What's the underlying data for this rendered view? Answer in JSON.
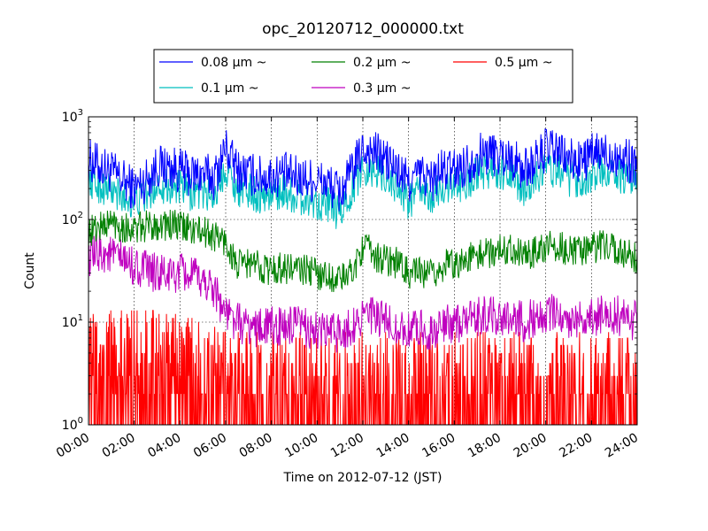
{
  "chart_data": {
    "type": "line",
    "title": "opc_20120712_000000.txt",
    "xlabel": "Time on 2012-07-12 (JST)",
    "ylabel": "Count",
    "x_unit": "hour",
    "xlim": [
      0,
      24
    ],
    "ylim": [
      1,
      1000
    ],
    "y_scale": "log",
    "grid": true,
    "legend_position": "top-center-outside",
    "x_ticks": [
      0,
      2,
      4,
      6,
      8,
      10,
      12,
      14,
      16,
      18,
      20,
      22,
      24
    ],
    "x_tick_labels": [
      "00:00",
      "02:00",
      "04:00",
      "06:00",
      "08:00",
      "10:00",
      "12:00",
      "14:00",
      "16:00",
      "18:00",
      "20:00",
      "22:00",
      "24:00"
    ],
    "y_ticks": [
      1,
      10,
      100,
      1000
    ],
    "y_tick_labels": [
      {
        "base": "10",
        "exp": "0"
      },
      {
        "base": "10",
        "exp": "1"
      },
      {
        "base": "10",
        "exp": "2"
      },
      {
        "base": "10",
        "exp": "3"
      }
    ],
    "x": [
      0,
      0.5,
      1,
      1.5,
      2,
      2.5,
      3,
      3.5,
      4,
      4.5,
      5,
      5.5,
      6,
      6.5,
      7,
      7.5,
      8,
      8.5,
      9,
      9.5,
      10,
      10.5,
      11,
      11.5,
      12,
      12.5,
      13,
      13.5,
      14,
      14.5,
      15,
      15.5,
      16,
      16.5,
      17,
      17.5,
      18,
      18.5,
      19,
      19.5,
      20,
      20.5,
      21,
      21.5,
      22,
      22.5,
      23,
      23.5,
      24
    ],
    "series": [
      {
        "name": "0.08 μm ~",
        "color": "#0000ff",
        "values": [
          380,
          330,
          290,
          240,
          200,
          240,
          330,
          320,
          300,
          270,
          280,
          250,
          500,
          300,
          280,
          260,
          260,
          280,
          260,
          250,
          240,
          220,
          180,
          280,
          480,
          450,
          380,
          300,
          230,
          280,
          240,
          300,
          300,
          340,
          420,
          450,
          420,
          400,
          300,
          360,
          480,
          460,
          380,
          360,
          420,
          450,
          430,
          380,
          350
        ]
      },
      {
        "name": "0.1 μm ~",
        "color": "#00bfbf",
        "values": [
          250,
          210,
          190,
          160,
          150,
          170,
          220,
          210,
          200,
          180,
          190,
          170,
          330,
          200,
          190,
          170,
          170,
          190,
          170,
          160,
          150,
          140,
          110,
          190,
          320,
          300,
          260,
          210,
          150,
          190,
          160,
          210,
          210,
          230,
          280,
          300,
          280,
          270,
          200,
          250,
          320,
          300,
          250,
          240,
          270,
          300,
          280,
          250,
          220
        ]
      },
      {
        "name": "0.2 μm ~",
        "color": "#008000",
        "values": [
          75,
          85,
          95,
          85,
          80,
          85,
          90,
          88,
          85,
          80,
          75,
          70,
          60,
          35,
          38,
          35,
          32,
          34,
          33,
          32,
          30,
          28,
          26,
          30,
          55,
          45,
          40,
          38,
          30,
          30,
          28,
          35,
          38,
          40,
          45,
          48,
          50,
          55,
          45,
          48,
          55,
          55,
          50,
          48,
          52,
          55,
          52,
          48,
          42
        ]
      },
      {
        "name": "0.3 μm ~",
        "color": "#bf00bf",
        "values": [
          40,
          48,
          45,
          40,
          35,
          32,
          30,
          28,
          30,
          28,
          25,
          22,
          12,
          10,
          9,
          9,
          9,
          9,
          9,
          9,
          8,
          8,
          8,
          9,
          12,
          11,
          10,
          9,
          8,
          9,
          8,
          9,
          10,
          10,
          11,
          12,
          11,
          12,
          10,
          11,
          12,
          12,
          11,
          11,
          11,
          12,
          12,
          11,
          10
        ]
      },
      {
        "name": "0.5 μm ~",
        "color": "#ff0000",
        "values": [
          3,
          3,
          3.5,
          3.5,
          3.5,
          3.5,
          3.5,
          3,
          3,
          3,
          2.5,
          2.5,
          2,
          2,
          2,
          2,
          2,
          2,
          2,
          2,
          2,
          2,
          2,
          2,
          2,
          2,
          2,
          2,
          2,
          2,
          2,
          2,
          2,
          2,
          2,
          2,
          2,
          2,
          2,
          2,
          2,
          2,
          2,
          2,
          2,
          2,
          2,
          2,
          2
        ]
      }
    ]
  }
}
